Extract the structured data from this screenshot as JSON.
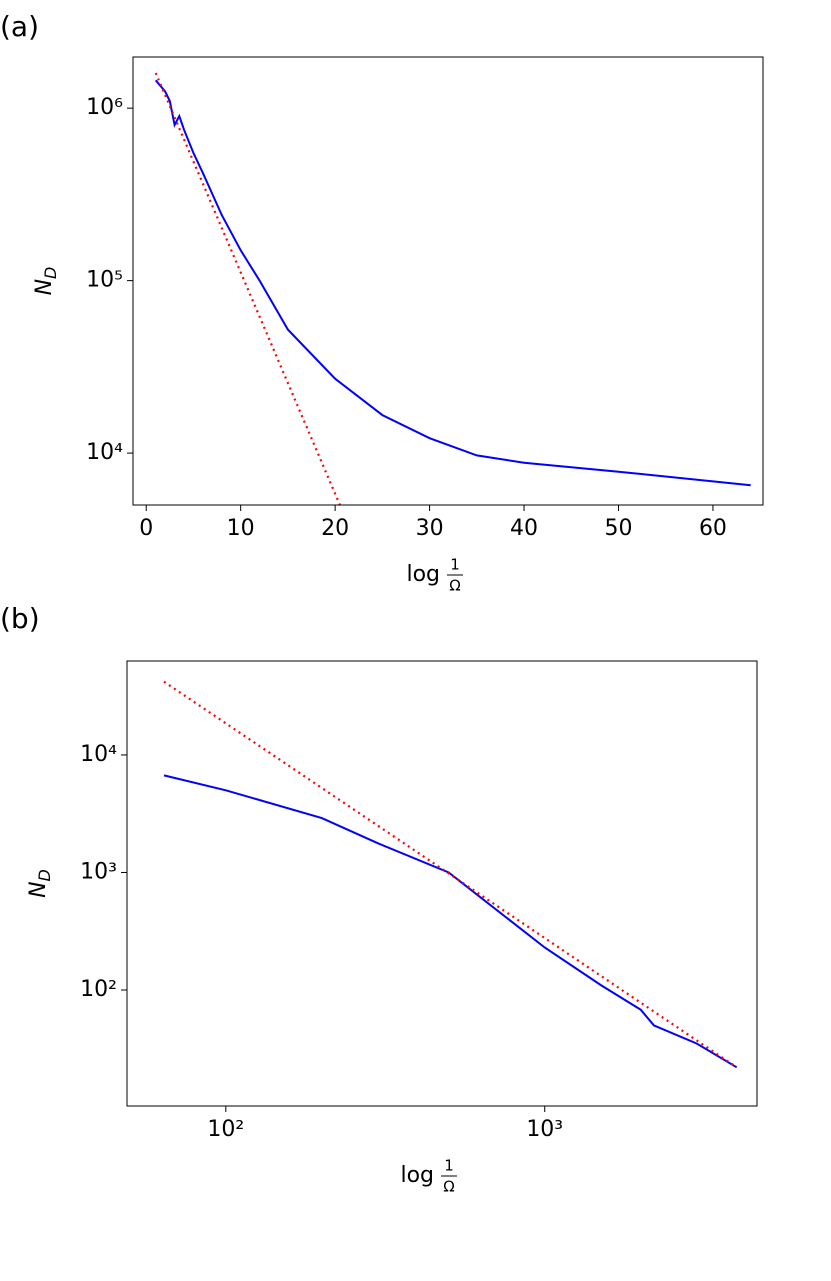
{
  "chart_data": [
    {
      "type": "line",
      "panel_label": "(a)",
      "xlabel": {
        "prefix": "log",
        "numerator": "1",
        "denominator": "Ω"
      },
      "ylabel": {
        "main": "N",
        "sub": "D"
      },
      "xscale": "linear",
      "yscale": "log",
      "xlim": [
        -1.4,
        65.3
      ],
      "ylim": [
        5000,
        1980000
      ],
      "xticks": [
        0,
        10,
        20,
        30,
        40,
        50,
        60
      ],
      "yticks": [
        {
          "value": 10000,
          "label": "10⁴"
        },
        {
          "value": 100000,
          "label": "10⁵"
        },
        {
          "value": 1000000,
          "label": "10⁶"
        }
      ],
      "series": [
        {
          "color": "#0000ff",
          "style": "solid",
          "x": [
            1,
            2,
            2.5,
            3,
            3.5,
            4,
            5,
            6,
            8,
            10,
            12,
            15,
            20,
            25,
            30,
            35,
            40,
            50,
            64
          ],
          "values": [
            1450000,
            1250000,
            1100000,
            800000,
            900000,
            750000,
            550000,
            420000,
            240000,
            150000,
            100000,
            52000,
            27000,
            16600,
            12200,
            9700,
            8800,
            7800,
            6500
          ]
        },
        {
          "color": "#ff0000",
          "style": "dotted",
          "x": [
            1,
            20.5
          ],
          "values": [
            1600000,
            5000
          ]
        }
      ]
    },
    {
      "type": "line",
      "panel_label": "(b)",
      "xlabel": {
        "prefix": "log",
        "numerator": "1",
        "denominator": "Ω"
      },
      "ylabel": {
        "main": "N",
        "sub": "D"
      },
      "xscale": "log",
      "yscale": "log",
      "xlim": [
        49,
        4630
      ],
      "ylim": [
        10.3,
        63000
      ],
      "xticks": [
        {
          "value": 100,
          "label": "10²"
        },
        {
          "value": 1000,
          "label": "10³"
        }
      ],
      "yticks": [
        {
          "value": 100,
          "label": "10²"
        },
        {
          "value": 1000,
          "label": "10³"
        },
        {
          "value": 10000,
          "label": "10⁴"
        }
      ],
      "series": [
        {
          "color": "#0000ff",
          "style": "solid",
          "x": [
            64,
            100,
            200,
            300,
            500,
            1000,
            1500,
            2000,
            2200,
            3000,
            4000
          ],
          "values": [
            6700,
            5000,
            2900,
            1770,
            1000,
            230,
            110,
            68,
            50,
            35,
            22
          ]
        },
        {
          "color": "#ff0000",
          "style": "dotted",
          "x": [
            64,
            4000
          ],
          "values": [
            42000,
            22
          ]
        }
      ]
    }
  ]
}
